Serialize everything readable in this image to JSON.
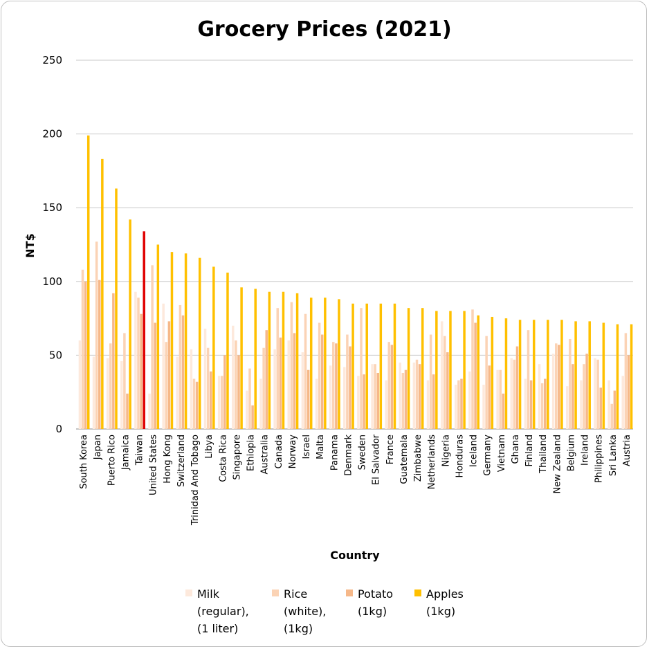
{
  "chart_data": {
    "type": "bar",
    "title": "Grocery Prices (2021)",
    "xlabel": "Country",
    "ylabel": "NT$",
    "ylim": [
      0,
      250
    ],
    "yticks": [
      0,
      50,
      100,
      150,
      200,
      250
    ],
    "categories": [
      "South Korea",
      "Japan",
      "Puerto Rico",
      "Jamaica",
      "Taiwan",
      "United States",
      "Hong Kong",
      "Switzerland",
      "Trinidad And Tobago",
      "Libya",
      "Costa Rica",
      "Singapore",
      "Ethiopia",
      "Australia",
      "Canada",
      "Norway",
      "Israel",
      "Malta",
      "Panama",
      "Denmark",
      "Sweden",
      "El Salvador",
      "France",
      "Guatemala",
      "Zimbabwe",
      "Netherlands",
      "Nigeria",
      "Honduras",
      "Iceland",
      "Germany",
      "Vietnam",
      "Ghana",
      "Finland",
      "Thailand",
      "New Zealand",
      "Belgium",
      "Ireland",
      "Philippines",
      "Sri Lanka",
      "Austria"
    ],
    "highlight_category": "Taiwan",
    "highlight_color": "#e00000",
    "series": [
      {
        "name": "Milk (regular), (1 liter)",
        "legend_lines": [
          "Milk",
          "(regular),",
          "(1 liter)"
        ],
        "color": "#fde9dc",
        "values": [
          60,
          49,
          48,
          46,
          93,
          24,
          85,
          49,
          54,
          68,
          36,
          70,
          26,
          34,
          54,
          60,
          52,
          34,
          43,
          42,
          36,
          44,
          33,
          45,
          45,
          33,
          73,
          30,
          39,
          30,
          40,
          48,
          34,
          44,
          51,
          29,
          33,
          48,
          33,
          36
        ]
      },
      {
        "name": "Rice (white), (1kg)",
        "legend_lines": [
          "Rice",
          "(white),",
          "(1kg)"
        ],
        "color": "#fbd3b5",
        "values": [
          108,
          127,
          58,
          65,
          89,
          111,
          59,
          84,
          34,
          55,
          36,
          60,
          41,
          55,
          82,
          86,
          78,
          72,
          59,
          64,
          82,
          44,
          59,
          38,
          47,
          64,
          63,
          33,
          81,
          63,
          40,
          47,
          67,
          31,
          58,
          61,
          44,
          47,
          17,
          65
        ]
      },
      {
        "name": "Potato (1kg)",
        "legend_lines": [
          "Potato",
          "(1kg)"
        ],
        "color": "#f6b889",
        "values": [
          100,
          101,
          92,
          24,
          78,
          72,
          73,
          77,
          32,
          39,
          50,
          50,
          16,
          67,
          62,
          65,
          40,
          64,
          58,
          56,
          37,
          38,
          57,
          40,
          44,
          37,
          52,
          34,
          72,
          43,
          24,
          56,
          33,
          34,
          57,
          44,
          51,
          28,
          26,
          50
        ]
      },
      {
        "name": "Apples (1kg)",
        "legend_lines": [
          "Apples",
          "(1kg)"
        ],
        "color": "#ffc000",
        "values": [
          199,
          183,
          163,
          142,
          134,
          125,
          120,
          119,
          116,
          110,
          106,
          96,
          95,
          93,
          93,
          92,
          89,
          89,
          88,
          85,
          85,
          85,
          85,
          82,
          82,
          80,
          80,
          80,
          77,
          76,
          75,
          74,
          74,
          74,
          74,
          73,
          73,
          72,
          71,
          71
        ]
      }
    ]
  }
}
